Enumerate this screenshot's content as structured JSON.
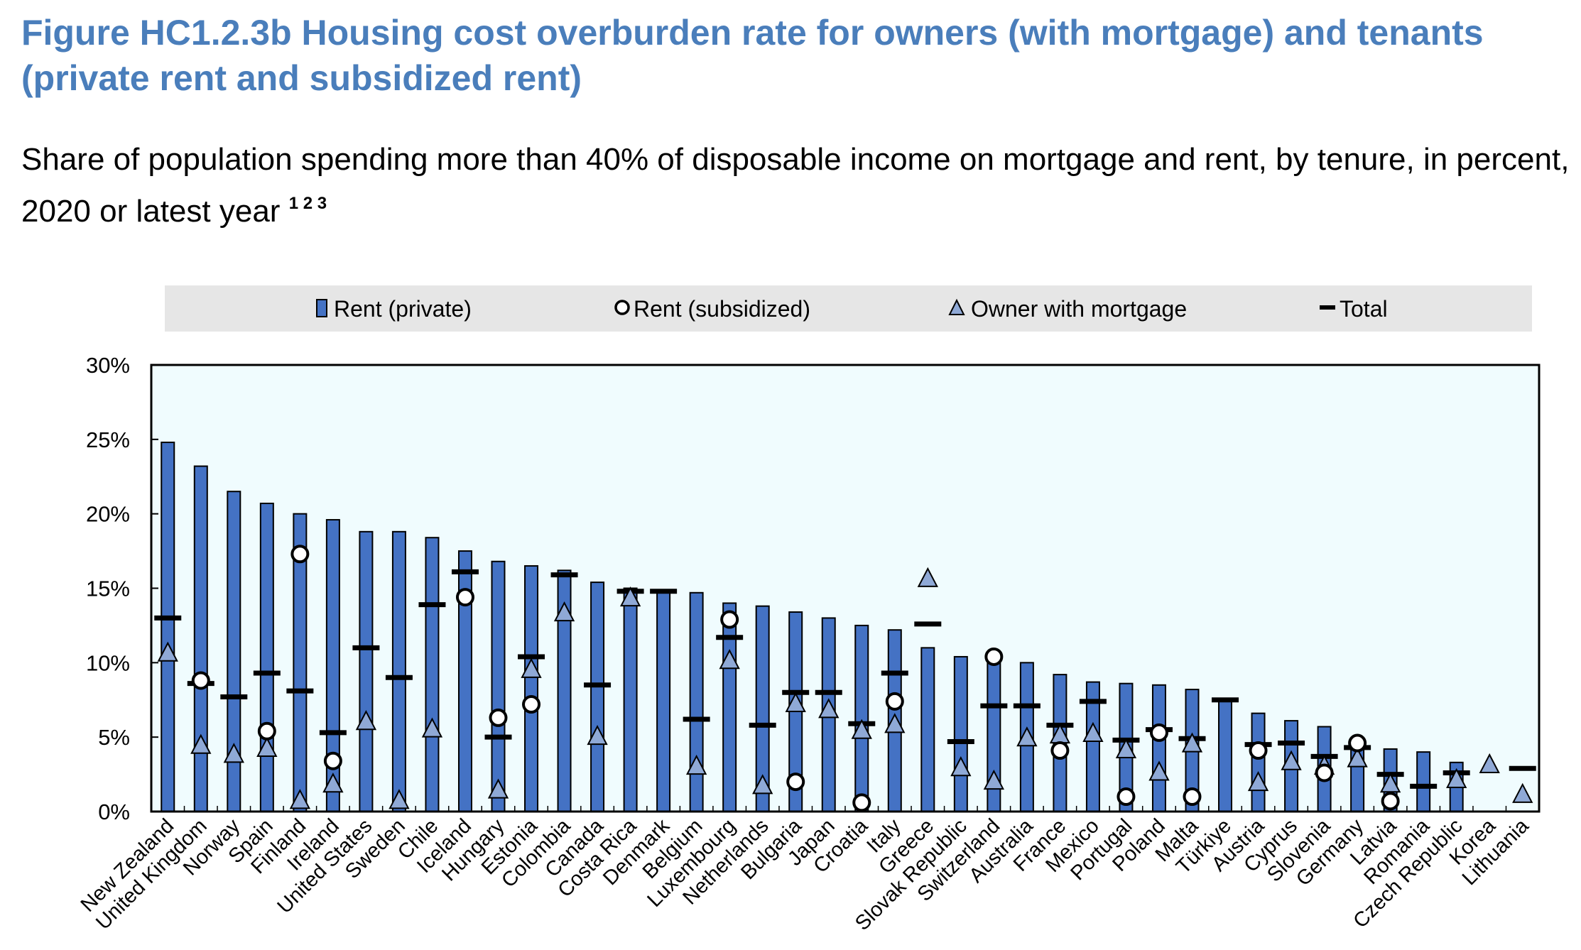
{
  "title": "Figure HC1.2.3b Housing cost overburden rate for owners (with mortgage) and tenants (private rent and subsidized rent)",
  "subtitle": "Share of population spending more than 40% of disposable income on mortgage and rent, by tenure, in percent, 2020 or latest year",
  "subtitle_notes": "1 2 3",
  "colors": {
    "title": "#4a7ebb",
    "bar_fill": "#4472c4",
    "bar_stroke": "#000000",
    "triangle_fill": "#8fa9d6",
    "plot_bg": "#f0fcfe",
    "legend_bg": "#e6e6e6"
  },
  "chart_data": {
    "type": "bar",
    "title": "Housing cost overburden rate for owners (with mortgage) and tenants (private rent and subsidized rent)",
    "ylabel": "",
    "xlabel": "",
    "ylim": [
      0,
      30
    ],
    "yticks": [
      0,
      5,
      10,
      15,
      20,
      25,
      30
    ],
    "ytick_labels": [
      "0%",
      "5%",
      "10%",
      "15%",
      "20%",
      "25%",
      "30%"
    ],
    "legend": [
      "Rent (private)",
      "Rent (subsidized)",
      "Owner with mortgage",
      "Total"
    ],
    "legend_position": "top",
    "categories": [
      "New Zealand",
      "United Kingdom",
      "Norway",
      "Spain",
      "Finland",
      "Ireland",
      "United States",
      "Sweden",
      "Chile",
      "Iceland",
      "Hungary",
      "Estonia",
      "Colombia",
      "Canada",
      "Costa Rica",
      "Denmark",
      "Belgium",
      "Luxembourg",
      "Netherlands",
      "Bulgaria",
      "Japan",
      "Croatia",
      "Italy",
      "Greece",
      "Slovak Republic",
      "Switzerland",
      "Australia",
      "France",
      "Mexico",
      "Portugal",
      "Poland",
      "Malta",
      "Türkiye",
      "Austria",
      "Cyprus",
      "Slovenia",
      "Germany",
      "Latvia",
      "Romania",
      "Czech Republic",
      "Korea",
      "Lithuania"
    ],
    "series": [
      {
        "name": "Rent (private)",
        "type": "bar",
        "values": [
          24.8,
          23.2,
          21.5,
          20.7,
          20.0,
          19.6,
          18.8,
          18.8,
          18.4,
          17.5,
          16.8,
          16.5,
          16.2,
          15.4,
          15.0,
          14.8,
          14.7,
          14.0,
          13.8,
          13.4,
          13.0,
          12.5,
          12.2,
          11.0,
          10.4,
          10.0,
          10.0,
          9.2,
          8.7,
          8.6,
          8.5,
          8.2,
          7.5,
          6.6,
          6.1,
          5.7,
          4.6,
          4.2,
          4.0,
          3.3,
          null,
          null
        ]
      },
      {
        "name": "Rent (subsidized)",
        "type": "marker-circle",
        "values": [
          null,
          8.8,
          null,
          5.4,
          17.3,
          3.4,
          null,
          null,
          null,
          14.4,
          6.3,
          7.2,
          null,
          null,
          null,
          null,
          null,
          12.9,
          null,
          2.0,
          null,
          0.6,
          7.4,
          null,
          null,
          10.4,
          null,
          4.1,
          null,
          1.0,
          5.3,
          1.0,
          null,
          4.1,
          null,
          2.6,
          4.6,
          0.7,
          null,
          null,
          null,
          null
        ]
      },
      {
        "name": "Owner with mortgage",
        "type": "marker-triangle",
        "values": [
          10.6,
          4.4,
          3.8,
          4.2,
          0.7,
          1.8,
          6.0,
          0.7,
          5.5,
          null,
          1.4,
          9.5,
          13.3,
          5.0,
          14.3,
          null,
          3.0,
          10.1,
          1.7,
          7.2,
          6.8,
          5.4,
          5.8,
          15.6,
          2.9,
          2.0,
          4.9,
          5.1,
          5.2,
          4.1,
          2.6,
          4.5,
          null,
          1.9,
          3.3,
          3.0,
          3.5,
          1.8,
          null,
          2.1,
          3.1,
          1.1
        ]
      },
      {
        "name": "Total",
        "type": "marker-dash",
        "values": [
          13.0,
          8.6,
          7.7,
          9.3,
          8.1,
          5.3,
          11.0,
          9.0,
          13.9,
          16.1,
          5.0,
          10.4,
          15.9,
          8.5,
          14.8,
          14.8,
          6.2,
          11.7,
          5.8,
          8.0,
          8.0,
          5.9,
          9.3,
          12.6,
          4.7,
          7.1,
          7.1,
          5.8,
          7.4,
          4.8,
          5.5,
          4.9,
          7.5,
          4.5,
          4.6,
          3.7,
          4.3,
          2.5,
          1.7,
          2.6,
          null,
          2.9
        ]
      }
    ]
  }
}
